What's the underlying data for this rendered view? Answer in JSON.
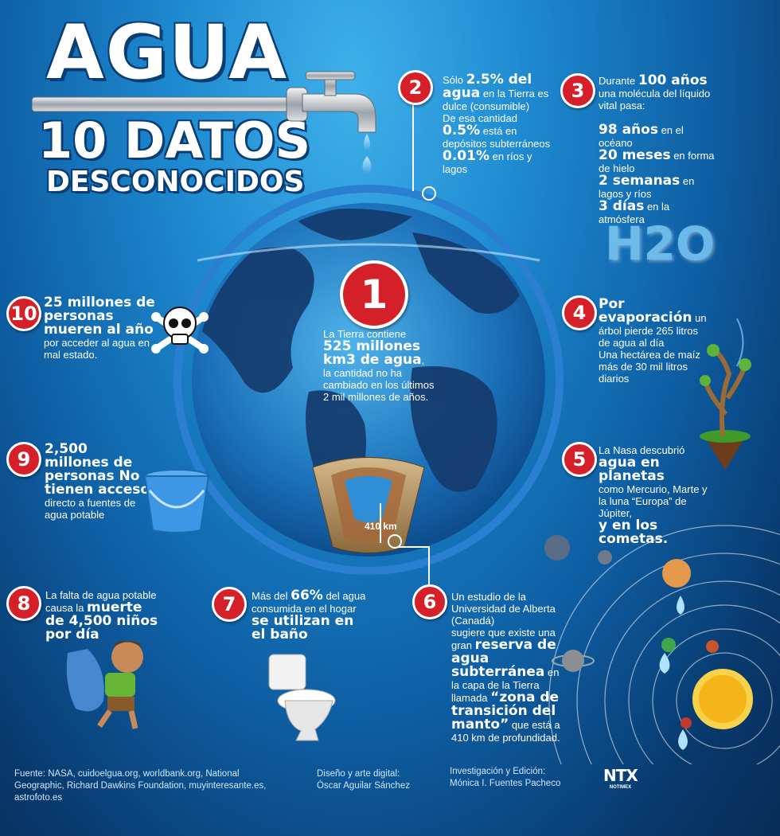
{
  "title": {
    "main": "AGUA",
    "sub1": "10 DATOS",
    "sub2": "DESCONOCIDOS"
  },
  "facts": {
    "f1": {
      "num": "1",
      "t1": "La Tierra contiene ",
      "b1": "525 millones km3 de agua",
      "t2": ", la cantidad no ha cambiado en los últimos 2 mil millones de años."
    },
    "f2": {
      "num": "2",
      "t1": "Sólo ",
      "b1": "2.5% del agua",
      "t2": " en la Tierra es dulce (consumible)",
      "t3": "De esa cantidad",
      "b2": "0.5%",
      "t4": " está en depósitos subterráneos",
      "b3": "0.01%",
      "t5": " en ríos y lagos"
    },
    "f3": {
      "num": "3",
      "t1": "Durante ",
      "b1": "100 años",
      "t2": " una molécula del líquido vital pasa:",
      "b2": "98 años",
      "t3": " en el océano",
      "b3": "20 meses",
      "t4": " en forma de hielo",
      "b4": "2 semanas",
      "t5": " en lagos y ríos",
      "b5": "3 días",
      "t6": " en la atmósfera"
    },
    "f4": {
      "num": "4",
      "b1": "Por evaporación",
      "t1": " un árbol pierde 265 litros de agua al día",
      "t2": "Una hectárea de maíz más de 30 mil litros diarios"
    },
    "f5": {
      "num": "5",
      "t1": "La Nasa descubrió",
      "b1": "agua en planetas",
      "t2": "como Mercurio, Marte y la luna “Europa” de Júpiter,",
      "b2": "y en los cometas."
    },
    "f6": {
      "num": "6",
      "t1": "Un estudio de la Universidad de Alberta (Canadá)",
      "t2": "sugiere que existe una gran ",
      "b1": "reserva de agua subterránea",
      "t3": " en la capa de la Tierra llamada ",
      "b2": "“zona de transición del manto”",
      "t4": " que está a 410 km de profundidad."
    },
    "f7": {
      "num": "7",
      "t1": "Más del ",
      "b1": "66%",
      "t2": " del agua consumida en el hogar ",
      "b2": "se utilizan en el baño"
    },
    "f8": {
      "num": "8",
      "t1": "La falta de agua potable causa la ",
      "b1": "muerte de 4,500 niños por día"
    },
    "f9": {
      "num": "9",
      "b1": "2,500 millones de personas No tienen acceso",
      "t1": " directo a fuentes de agua potable"
    },
    "f10": {
      "num": "10",
      "b1": "25 millones de personas mueren al año",
      "t1": " por acceder al agua en mal estado."
    }
  },
  "earth": {
    "depth_label": "410 km"
  },
  "h2o": {
    "label": "H2O"
  },
  "footer": {
    "sources": "Fuente: NASA, cuidoelgua.org, worldbank.org, National Geographic, Richard Dawkins Foundation,  muyinteresante.es, astrofoto.es",
    "design_label": "Diseño y  arte digital:",
    "design_name": "Óscar Aguilar Sánchez",
    "research_label": "Investigación y Edición:",
    "research_name": "Mónica I. Fuentes Pacheco",
    "logo": "NTX",
    "logo_sub": "NOTIMEX"
  },
  "colors": {
    "badge": "#d5202a",
    "ocean": "#1a6fb8",
    "land": "#153d70"
  }
}
